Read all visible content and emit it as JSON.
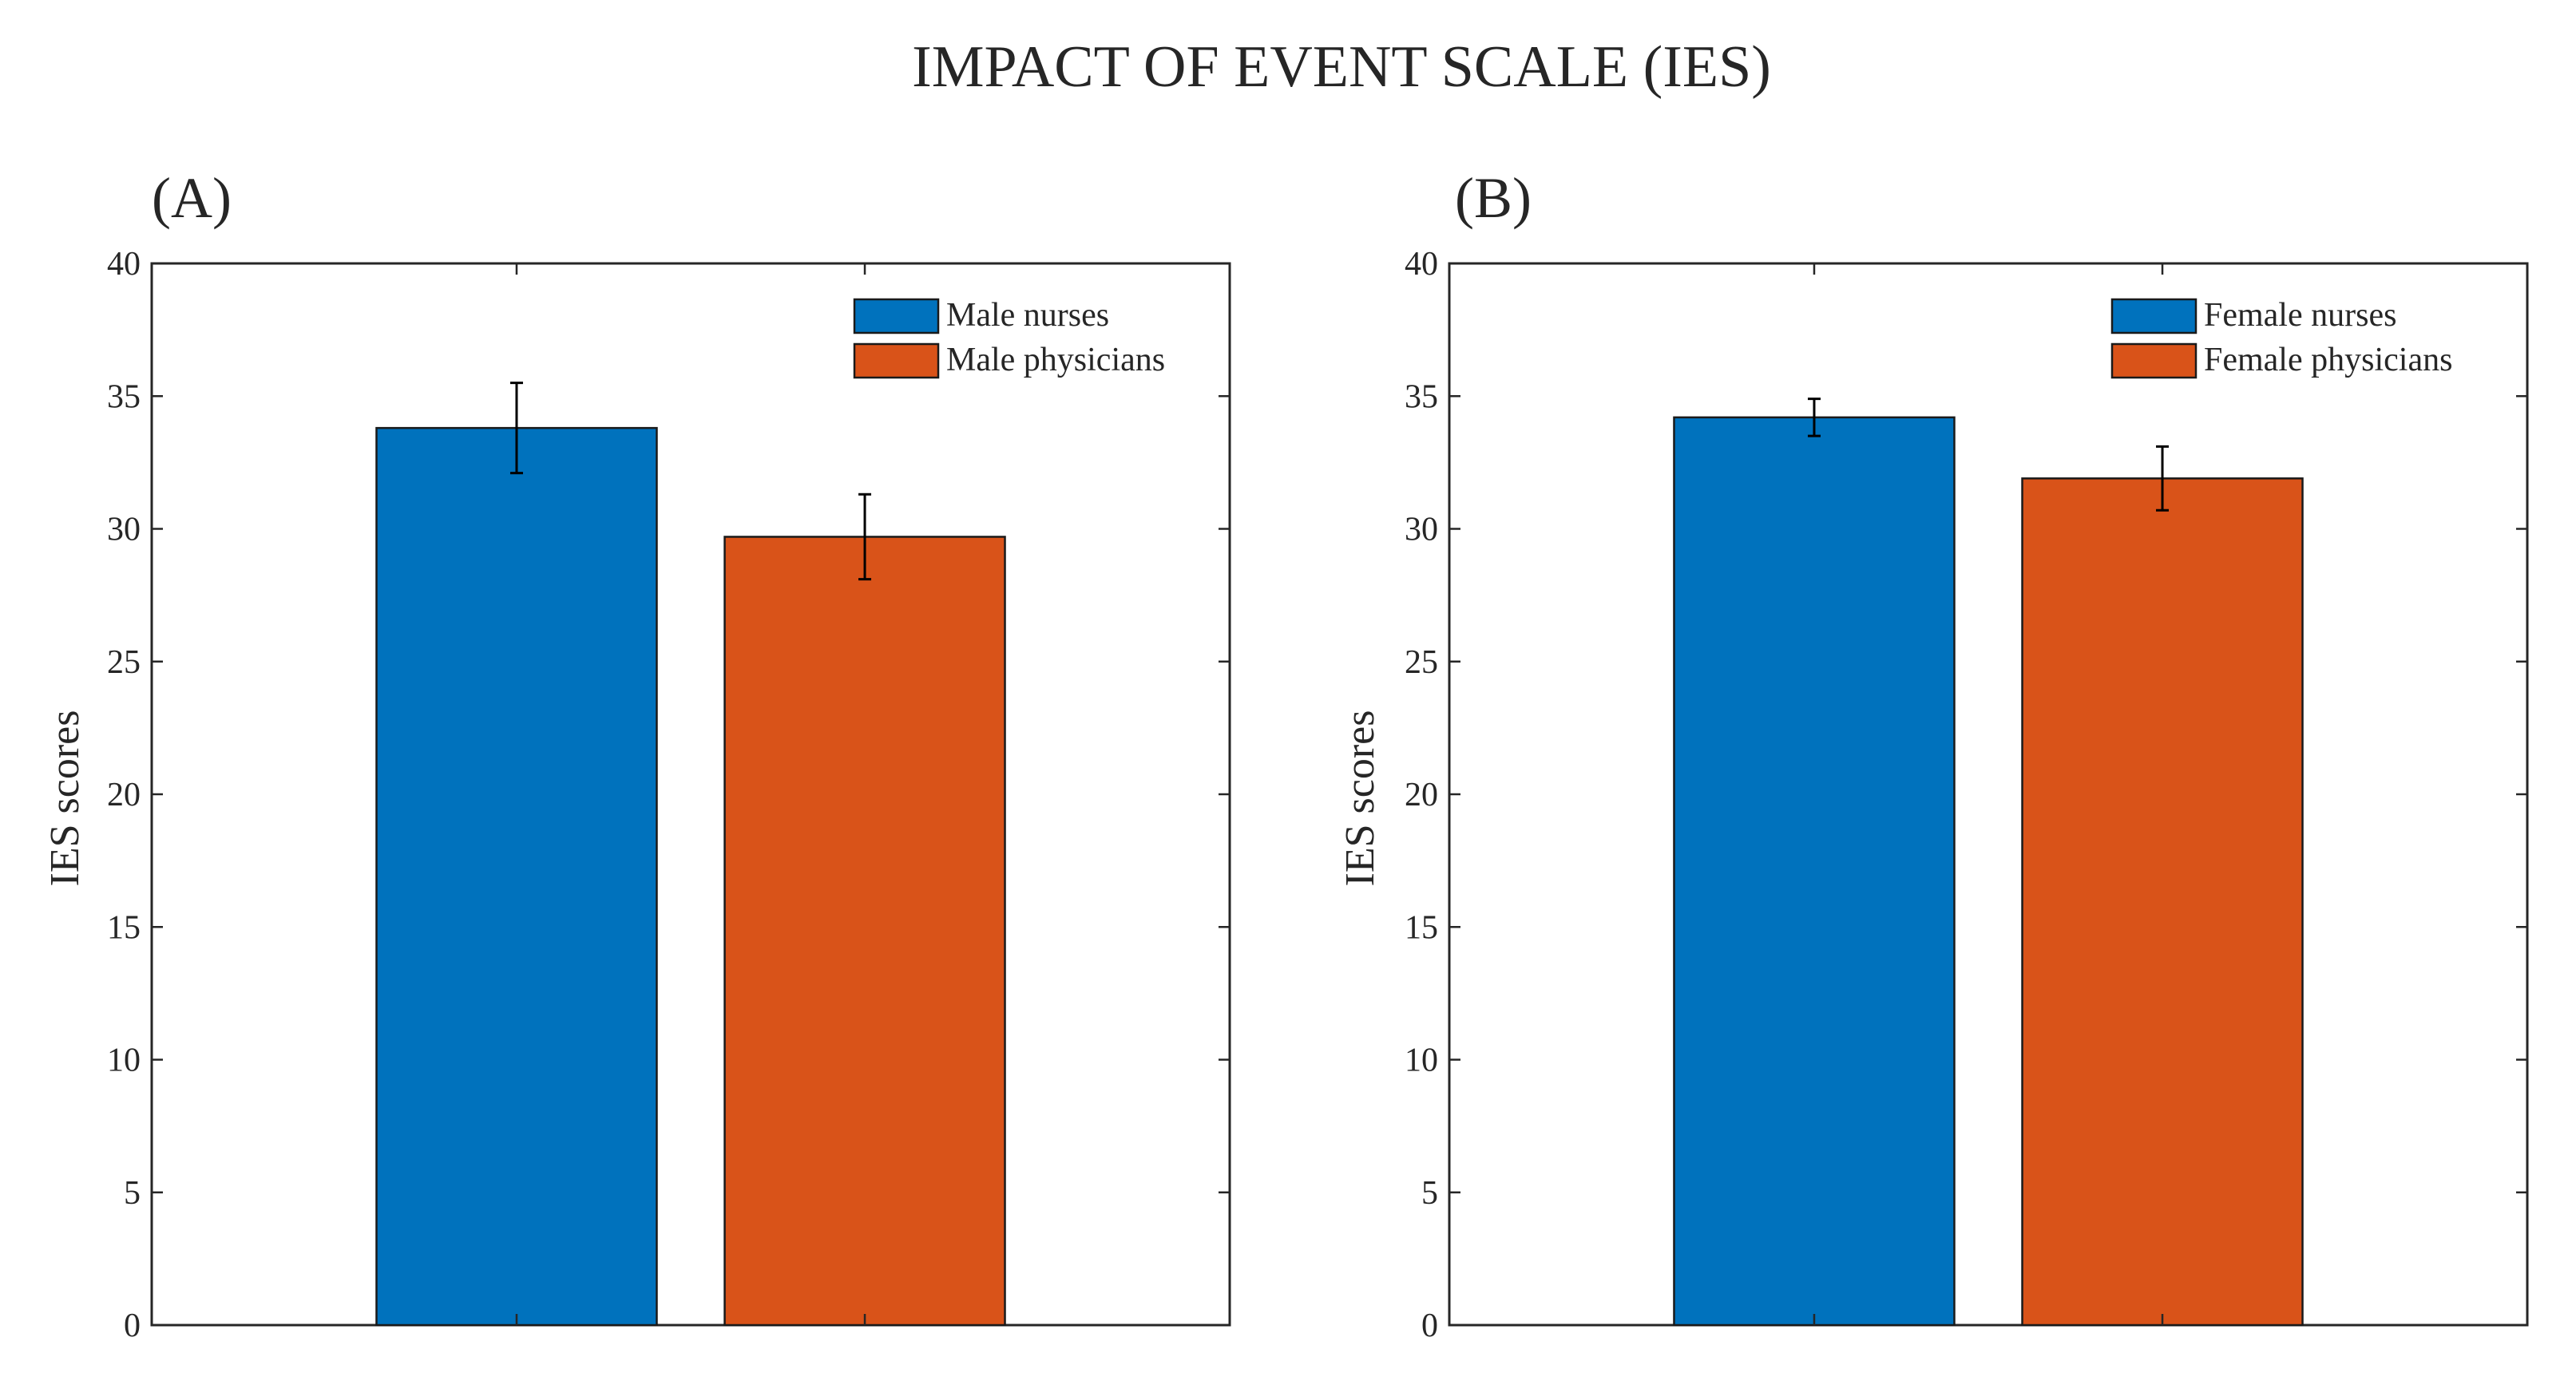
{
  "title": "IMPACT OF EVENT SCALE (IES)",
  "chart_data": [
    {
      "type": "bar",
      "panel_label": "(A)",
      "title": "IMPACT OF EVENT SCALE (IES)",
      "xlabel": "",
      "ylabel": "IES scores",
      "ylim": [
        0,
        40
      ],
      "yticks": [
        0,
        5,
        10,
        15,
        20,
        25,
        30,
        35,
        40
      ],
      "categories": [
        "Male nurses",
        "Male physicians"
      ],
      "values": [
        33.8,
        29.7
      ],
      "errors": [
        1.7,
        1.6
      ],
      "colors": [
        "#0072BD",
        "#D95319"
      ],
      "legend": [
        "Male nurses",
        "Male physicians"
      ],
      "legend_position": "top-right",
      "grid": false
    },
    {
      "type": "bar",
      "panel_label": "(B)",
      "title": "IMPACT OF EVENT SCALE (IES)",
      "xlabel": "",
      "ylabel": "IES scores",
      "ylim": [
        0,
        40
      ],
      "yticks": [
        0,
        5,
        10,
        15,
        20,
        25,
        30,
        35,
        40
      ],
      "categories": [
        "Female nurses",
        "Female physicians"
      ],
      "values": [
        34.2,
        31.9
      ],
      "errors": [
        0.7,
        1.2
      ],
      "colors": [
        "#0072BD",
        "#D95319"
      ],
      "legend": [
        "Female nurses",
        "Female physicians"
      ],
      "legend_position": "top-right",
      "grid": false
    }
  ]
}
